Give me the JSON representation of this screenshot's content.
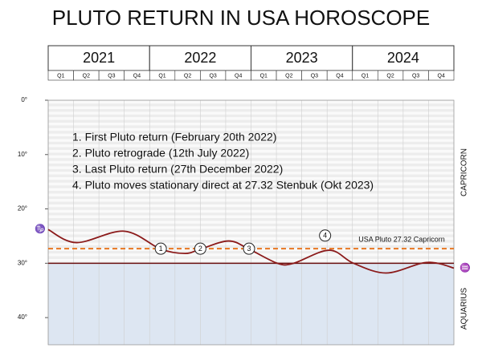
{
  "chart_data": {
    "type": "line",
    "title": "PLUTO RETURN IN USA HOROSCOPE",
    "years": [
      "2021",
      "2022",
      "2023",
      "2024"
    ],
    "quarters": [
      "Q1",
      "Q2",
      "Q3",
      "Q4"
    ],
    "xlim": [
      2021,
      2025
    ],
    "ylim": [
      0,
      45
    ],
    "yticks": [
      {
        "value": 0,
        "label": "0°"
      },
      {
        "value": 10,
        "label": "10°"
      },
      {
        "value": 20,
        "label": "20°"
      },
      {
        "value": 30,
        "label": "30°"
      },
      {
        "value": 40,
        "label": "40°"
      }
    ],
    "series": [
      {
        "name": "Pluto",
        "color": "#8b1a1a",
        "x": [
          2021.0,
          2021.28,
          2021.75,
          2022.11,
          2022.35,
          2022.5,
          2022.78,
          2022.98,
          2023.26,
          2023.42,
          2023.77,
          2024.01,
          2024.33,
          2024.68,
          2024.84,
          2025.0
        ],
        "values": [
          23.8,
          26.2,
          24.1,
          27.4,
          28.2,
          27.4,
          25.9,
          27.4,
          30.0,
          30.0,
          27.6,
          30.0,
          31.8,
          30.0,
          30.0,
          30.9
        ]
      }
    ],
    "reference_line": {
      "value": 27.32,
      "label": "USA Pluto 27.32 Capricorn",
      "color": "#e87722"
    },
    "sign_boundary": 30,
    "sign_labels": [
      "CAPRICORN",
      "AQUARIUS"
    ],
    "symbols": [
      "♑",
      "♒"
    ],
    "markers": [
      {
        "label": "1",
        "x": 2022.11,
        "y": 27.32
      },
      {
        "label": "2",
        "x": 2022.5,
        "y": 27.32
      },
      {
        "label": "3",
        "x": 2022.98,
        "y": 27.32
      },
      {
        "label": "4",
        "x": 2023.73,
        "y": 24.9
      }
    ],
    "notes": [
      "1.   First Pluto return (February 20th 2022)",
      "2.   Pluto retrograde (12th July 2022)",
      "3.   Last Pluto return (27th December 2022)",
      "4.   Pluto moves stationary direct at 27.32 Stenbuk (Okt 2023)"
    ]
  }
}
